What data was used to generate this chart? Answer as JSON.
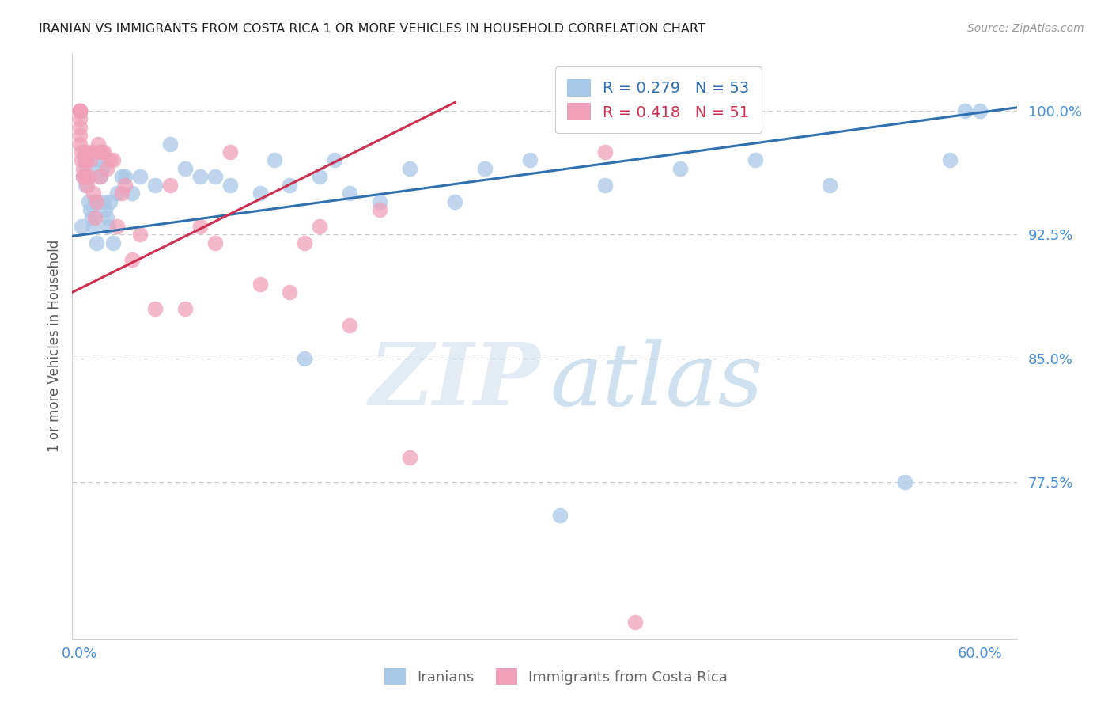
{
  "title": "IRANIAN VS IMMIGRANTS FROM COSTA RICA 1 OR MORE VEHICLES IN HOUSEHOLD CORRELATION CHART",
  "source": "Source: ZipAtlas.com",
  "ylabel": "1 or more Vehicles in Household",
  "ytick_labels": [
    "100.0%",
    "92.5%",
    "85.0%",
    "77.5%"
  ],
  "ytick_values": [
    1.0,
    0.925,
    0.85,
    0.775
  ],
  "ymin": 0.68,
  "ymax": 1.035,
  "xmin": -0.005,
  "xmax": 0.625,
  "blue_R": 0.279,
  "blue_N": 53,
  "pink_R": 0.418,
  "pink_N": 51,
  "legend_label_blue": "Iranians",
  "legend_label_pink": "Immigrants from Costa Rica",
  "blue_color": "#a8c8e8",
  "pink_color": "#f0a0b8",
  "blue_line_color": "#3070b0",
  "pink_line_color": "#cc3050",
  "text_color": "#4a90d9",
  "title_color": "#222222",
  "grid_color": "#c8c8c8",
  "background_color": "#ffffff",
  "blue_x": [
    0.001,
    0.002,
    0.003,
    0.004,
    0.005,
    0.006,
    0.007,
    0.008,
    0.009,
    0.01,
    0.011,
    0.012,
    0.013,
    0.014,
    0.015,
    0.016,
    0.017,
    0.018,
    0.019,
    0.02,
    0.022,
    0.025,
    0.028,
    0.03,
    0.035,
    0.04,
    0.05,
    0.06,
    0.07,
    0.08,
    0.09,
    0.1,
    0.12,
    0.13,
    0.14,
    0.15,
    0.16,
    0.17,
    0.18,
    0.2,
    0.22,
    0.25,
    0.27,
    0.3,
    0.32,
    0.35,
    0.4,
    0.45,
    0.5,
    0.55,
    0.58,
    0.59,
    0.6
  ],
  "blue_y": [
    0.93,
    0.96,
    0.97,
    0.955,
    0.965,
    0.945,
    0.94,
    0.935,
    0.93,
    0.945,
    0.92,
    0.97,
    0.975,
    0.96,
    0.965,
    0.945,
    0.94,
    0.935,
    0.93,
    0.945,
    0.92,
    0.95,
    0.96,
    0.96,
    0.95,
    0.96,
    0.955,
    0.98,
    0.965,
    0.96,
    0.96,
    0.955,
    0.95,
    0.97,
    0.955,
    0.85,
    0.96,
    0.97,
    0.95,
    0.945,
    0.965,
    0.945,
    0.965,
    0.97,
    0.755,
    0.955,
    0.965,
    0.97,
    0.955,
    0.775,
    0.97,
    1.0,
    1.0
  ],
  "pink_x": [
    0.0,
    0.0,
    0.0,
    0.0,
    0.0,
    0.0,
    0.0,
    0.0,
    0.001,
    0.001,
    0.002,
    0.002,
    0.003,
    0.003,
    0.004,
    0.004,
    0.005,
    0.006,
    0.007,
    0.008,
    0.009,
    0.01,
    0.011,
    0.012,
    0.013,
    0.014,
    0.015,
    0.016,
    0.018,
    0.02,
    0.022,
    0.025,
    0.028,
    0.03,
    0.035,
    0.04,
    0.05,
    0.06,
    0.07,
    0.08,
    0.09,
    0.1,
    0.12,
    0.14,
    0.15,
    0.16,
    0.18,
    0.2,
    0.22,
    0.35,
    0.37
  ],
  "pink_y": [
    1.0,
    1.0,
    1.0,
    1.0,
    0.995,
    0.99,
    0.985,
    0.98,
    0.975,
    0.97,
    0.965,
    0.96,
    0.975,
    0.96,
    0.97,
    0.975,
    0.955,
    0.96,
    0.97,
    0.975,
    0.95,
    0.935,
    0.945,
    0.98,
    0.96,
    0.975,
    0.975,
    0.975,
    0.965,
    0.97,
    0.97,
    0.93,
    0.95,
    0.955,
    0.91,
    0.925,
    0.88,
    0.955,
    0.88,
    0.93,
    0.92,
    0.975,
    0.895,
    0.89,
    0.92,
    0.93,
    0.87,
    0.94,
    0.79,
    0.975,
    0.69
  ],
  "blue_trendline_x": [
    -0.005,
    0.625
  ],
  "blue_trendline_y": [
    0.924,
    1.002
  ],
  "pink_trendline_x": [
    -0.005,
    0.25
  ],
  "pink_trendline_y": [
    0.89,
    1.005
  ]
}
